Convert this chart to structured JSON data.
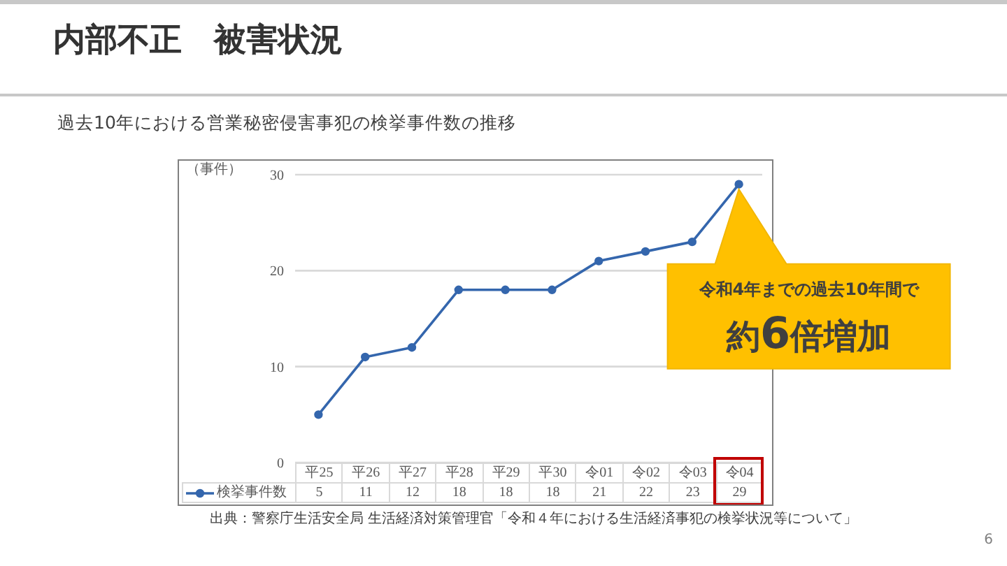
{
  "chart_data": {
    "type": "line",
    "title": "内部不正　被害状況",
    "subtitle": "過去10年における営業秘密侵害事犯の検挙事件数の推移",
    "ylabel": "（事件）",
    "categories": [
      "平25",
      "平26",
      "平27",
      "平28",
      "平29",
      "平30",
      "令01",
      "令02",
      "令03",
      "令04"
    ],
    "series": [
      {
        "name": "検挙事件数",
        "color": "#3466ad",
        "values": [
          5,
          11,
          12,
          18,
          18,
          18,
          21,
          22,
          23,
          29
        ]
      }
    ],
    "ylim": [
      0,
      30
    ],
    "yticks": [
      0,
      10,
      20,
      30
    ],
    "grid": "y",
    "legend": "bottom left",
    "marker": "circle",
    "line_style": "solid",
    "data_labels": true,
    "annotations": [
      "令和4年までの過去10年間で",
      {
        "text": "約6倍増加",
        "x": "令04",
        "y": 29
      },
      "出典：警察庁生活安全局 生活経済対策管理官「令和４年における生活経済事犯の検挙状況等について」",
      "6"
    ]
  }
}
